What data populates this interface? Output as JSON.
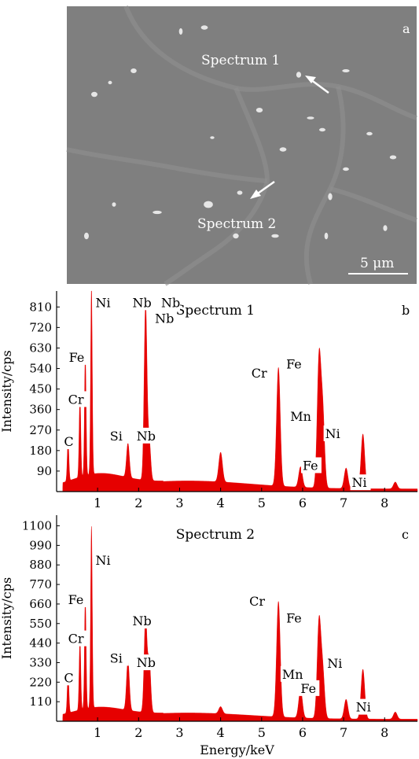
{
  "panel_a": {
    "letter": "a",
    "labels": [
      "Spectrum 1",
      "Spectrum 2"
    ],
    "scale_bar": "5 μm",
    "background_color": "#7f7f7f",
    "particle_color": "#e6e6e6"
  },
  "chart_data": [
    {
      "type": "area",
      "letter": "b",
      "title": "Spectrum 1",
      "ylabel": "Intensity/cps",
      "xlabel": "",
      "xlim": [
        0,
        8.8
      ],
      "ylim": [
        0,
        880
      ],
      "xticks": [
        1,
        2,
        3,
        4,
        5,
        6,
        7,
        8
      ],
      "yticks": [
        90,
        180,
        270,
        360,
        450,
        540,
        630,
        720,
        810
      ],
      "series_color": "#e60000",
      "peaks": [
        {
          "element": "C",
          "x": 0.28,
          "y": 180
        },
        {
          "element": "Cr",
          "x": 0.57,
          "y": 360
        },
        {
          "element": "Fe",
          "x": 0.7,
          "y": 530
        },
        {
          "element": "Ni",
          "x": 0.85,
          "y": 820
        },
        {
          "element": "Si",
          "x": 1.74,
          "y": 150
        },
        {
          "element": "Nb",
          "x": 2.17,
          "y": 770
        },
        {
          "element": "Nb",
          "x": 2.26,
          "y": 170
        },
        {
          "element": "",
          "x": 4.0,
          "y": 130
        },
        {
          "element": "Cr",
          "x": 5.41,
          "y": 520
        },
        {
          "element": "",
          "x": 5.95,
          "y": 90
        },
        {
          "element": "Fe",
          "x": 6.4,
          "y": 560
        },
        {
          "element": "Mn",
          "x": 6.49,
          "y": 330
        },
        {
          "element": "Fe",
          "x": 7.06,
          "y": 90
        },
        {
          "element": "Ni",
          "x": 7.47,
          "y": 240
        },
        {
          "element": "Ni",
          "x": 8.26,
          "y": 30
        }
      ],
      "annotations": [
        {
          "text": "Ni",
          "x": 0.95,
          "y": 810
        },
        {
          "text": "Nb",
          "x": 1.85,
          "y": 810
        },
        {
          "text": "Nb",
          "x": 2.55,
          "y": 810
        },
        {
          "text": "Nb",
          "x": 2.4,
          "y": 740
        },
        {
          "text": "Fe",
          "x": 0.3,
          "y": 570
        },
        {
          "text": "Cr",
          "x": 0.28,
          "y": 385
        },
        {
          "text": "C",
          "x": 0.18,
          "y": 200
        },
        {
          "text": "Si",
          "x": 1.3,
          "y": 225
        },
        {
          "text": "Nb",
          "x": 1.95,
          "y": 225
        },
        {
          "text": "Cr",
          "x": 4.75,
          "y": 500
        },
        {
          "text": "Fe",
          "x": 5.6,
          "y": 540
        },
        {
          "text": "Mn",
          "x": 5.7,
          "y": 310
        },
        {
          "text": "Ni",
          "x": 6.55,
          "y": 235
        },
        {
          "text": "Fe",
          "x": 6.0,
          "y": 95
        },
        {
          "text": "Ni",
          "x": 7.2,
          "y": 20
        }
      ]
    },
    {
      "type": "area",
      "letter": "c",
      "title": "Spectrum 2",
      "ylabel": "Intensity/cps",
      "xlabel": "Energy/keV",
      "xlim": [
        0,
        8.8
      ],
      "ylim": [
        0,
        1160
      ],
      "xticks": [
        1,
        2,
        3,
        4,
        5,
        6,
        7,
        8
      ],
      "yticks": [
        110,
        220,
        330,
        440,
        550,
        660,
        770,
        880,
        990,
        1100
      ],
      "series_color": "#e60000",
      "peaks": [
        {
          "element": "C",
          "x": 0.28,
          "y": 230
        },
        {
          "element": "Cr",
          "x": 0.57,
          "y": 400
        },
        {
          "element": "Fe",
          "x": 0.7,
          "y": 620
        },
        {
          "element": "Ni",
          "x": 0.85,
          "y": 1020
        },
        {
          "element": "Si",
          "x": 1.74,
          "y": 280
        },
        {
          "element": "Nb",
          "x": 2.17,
          "y": 540
        },
        {
          "element": "Nb",
          "x": 2.26,
          "y": 300
        },
        {
          "element": "",
          "x": 4.0,
          "y": 40
        },
        {
          "element": "Cr",
          "x": 5.41,
          "y": 650
        },
        {
          "element": "",
          "x": 5.95,
          "y": 160
        },
        {
          "element": "Fe",
          "x": 6.4,
          "y": 540
        },
        {
          "element": "Mn",
          "x": 6.49,
          "y": 260
        },
        {
          "element": "Fe",
          "x": 7.06,
          "y": 110
        },
        {
          "element": "Ni",
          "x": 7.47,
          "y": 280
        },
        {
          "element": "Ni",
          "x": 8.26,
          "y": 40
        }
      ],
      "annotations": [
        {
          "text": "Ni",
          "x": 0.95,
          "y": 880
        },
        {
          "text": "Fe",
          "x": 0.28,
          "y": 660
        },
        {
          "text": "Cr",
          "x": 0.28,
          "y": 440
        },
        {
          "text": "C",
          "x": 0.18,
          "y": 220
        },
        {
          "text": "Si",
          "x": 1.3,
          "y": 330
        },
        {
          "text": "Nb",
          "x": 1.85,
          "y": 540
        },
        {
          "text": "Nb",
          "x": 1.95,
          "y": 305
        },
        {
          "text": "Cr",
          "x": 4.7,
          "y": 650
        },
        {
          "text": "Fe",
          "x": 5.6,
          "y": 555
        },
        {
          "text": "Mn",
          "x": 5.5,
          "y": 240
        },
        {
          "text": "Ni",
          "x": 6.6,
          "y": 300
        },
        {
          "text": "Fe",
          "x": 5.95,
          "y": 160
        },
        {
          "text": "Ni",
          "x": 7.3,
          "y": 55
        }
      ]
    }
  ]
}
